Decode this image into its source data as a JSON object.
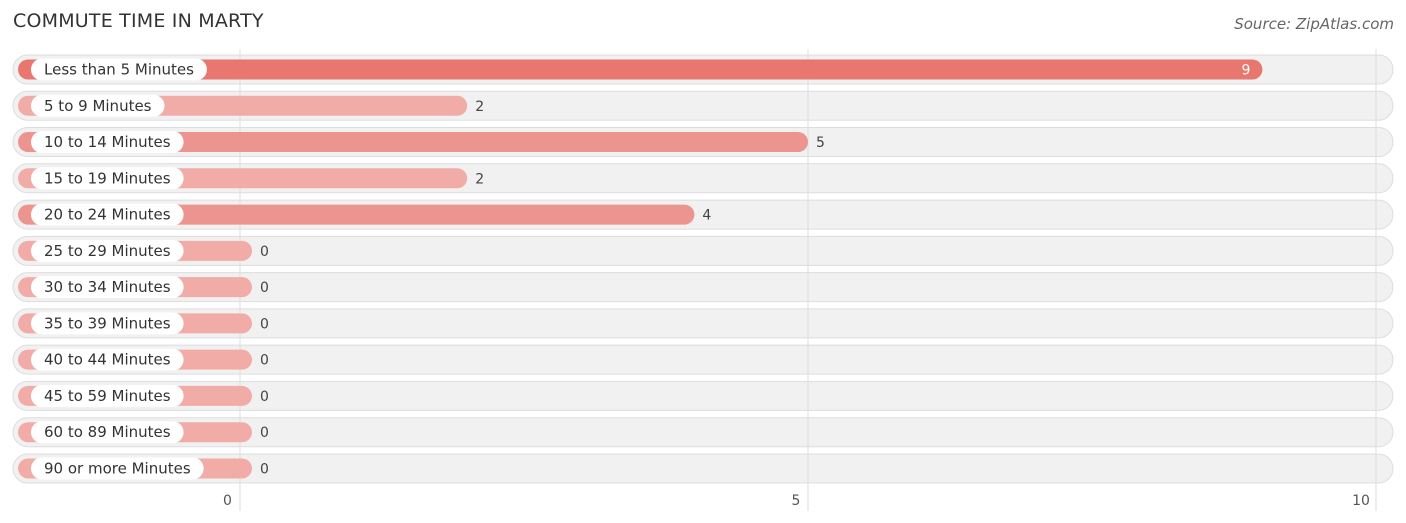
{
  "header": {
    "title": "COMMUTE TIME IN MARTY",
    "source": "Source: ZipAtlas.com"
  },
  "colors": {
    "bar_max": "#e8786f",
    "bar_high": "#ec9490",
    "bar_low": "#f1aca8",
    "row_bg": "#f1f1f1",
    "row_border": "#dddddd",
    "grid": "#dddddd",
    "label_text": "#333333",
    "value_text": "#444444",
    "value_text_inside": "#ffffff"
  },
  "chart_data": {
    "type": "bar",
    "orientation": "horizontal",
    "categories": [
      "Less than 5 Minutes",
      "5 to 9 Minutes",
      "10 to 14 Minutes",
      "15 to 19 Minutes",
      "20 to 24 Minutes",
      "25 to 29 Minutes",
      "30 to 34 Minutes",
      "35 to 39 Minutes",
      "40 to 44 Minutes",
      "45 to 59 Minutes",
      "60 to 89 Minutes",
      "90 or more Minutes"
    ],
    "values": [
      9,
      2,
      5,
      2,
      4,
      0,
      0,
      0,
      0,
      0,
      0,
      0
    ],
    "xlim": [
      0,
      10
    ],
    "xticks": [
      0,
      5,
      10
    ],
    "grid": true
  }
}
